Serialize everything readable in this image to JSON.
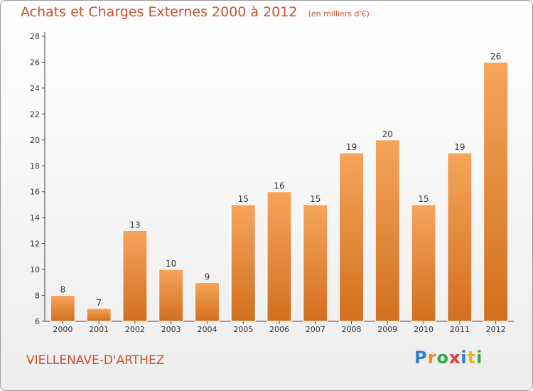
{
  "chart_data": {
    "type": "bar",
    "title": "Achats et Charges Externes 2000 à 2012",
    "subtitle": "(en milliers d'€)",
    "categories": [
      "2000",
      "2001",
      "2002",
      "2003",
      "2004",
      "2005",
      "2006",
      "2007",
      "2008",
      "2009",
      "2010",
      "2011",
      "2012"
    ],
    "values": [
      8,
      7,
      13,
      10,
      9,
      15,
      16,
      15,
      19,
      20,
      15,
      19,
      26
    ],
    "ylim": [
      6,
      28
    ],
    "yticks": [
      6,
      8,
      10,
      12,
      14,
      16,
      18,
      20,
      22,
      24,
      26,
      28
    ],
    "grid": false,
    "bar_color": "#f28a2e",
    "bar_color_light": "#f6a55b",
    "bar_color_dark": "#d1701f"
  },
  "commune": "VIELLENAVE-D'ARTHEZ",
  "logo": {
    "letters": [
      "P",
      "r",
      "o",
      "x",
      "i",
      "t",
      "i"
    ],
    "colors": [
      "#2e7fd1",
      "#f08a1c",
      "#3aa845",
      "#e23a3a",
      "#2e7fd1",
      "#f0b41c",
      "#3aa845"
    ]
  }
}
